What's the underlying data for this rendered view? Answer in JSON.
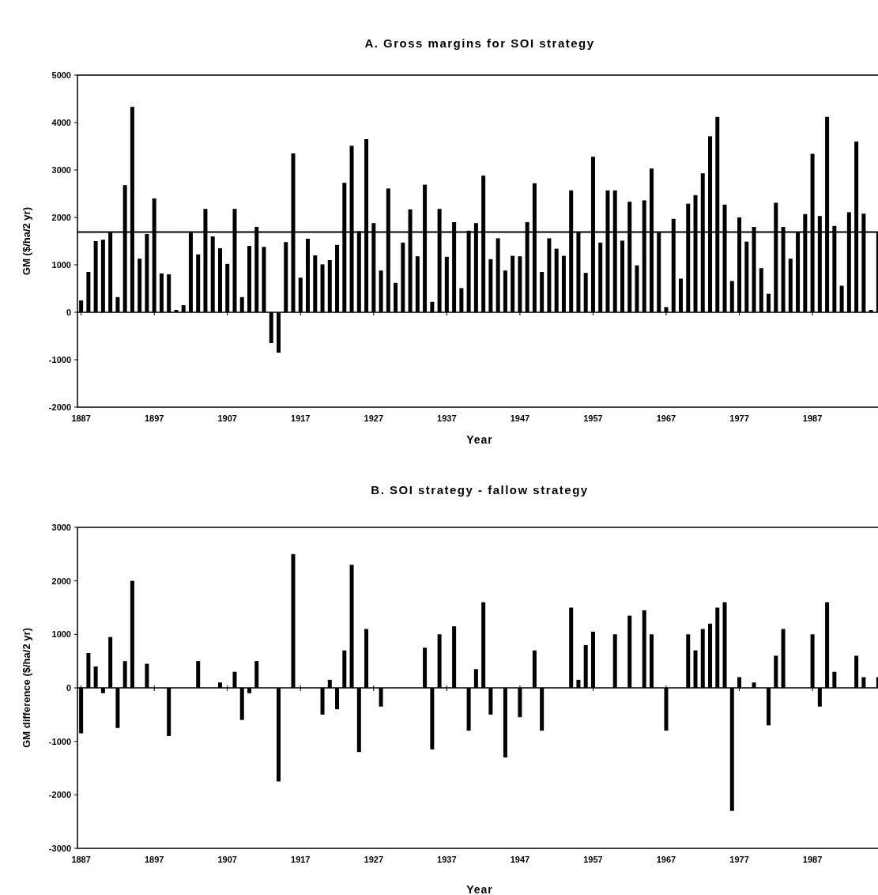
{
  "chart_data": [
    {
      "type": "bar",
      "title": "A. Gross margins for SOI strategy",
      "xlabel": "Year",
      "ylabel": "GM ($/ha/2 yr)",
      "x": [
        1887,
        1888,
        1889,
        1890,
        1891,
        1892,
        1893,
        1894,
        1895,
        1896,
        1897,
        1898,
        1899,
        1900,
        1901,
        1902,
        1903,
        1904,
        1905,
        1906,
        1907,
        1908,
        1909,
        1910,
        1911,
        1912,
        1913,
        1914,
        1915,
        1916,
        1917,
        1918,
        1919,
        1920,
        1921,
        1922,
        1923,
        1924,
        1925,
        1926,
        1927,
        1928,
        1929,
        1930,
        1931,
        1932,
        1933,
        1934,
        1935,
        1936,
        1937,
        1938,
        1939,
        1940,
        1941,
        1942,
        1943,
        1944,
        1945,
        1946,
        1947,
        1948,
        1949,
        1950,
        1951,
        1952,
        1953,
        1954,
        1955,
        1956,
        1957,
        1958,
        1959,
        1960,
        1961,
        1962,
        1963,
        1964,
        1965,
        1966,
        1967,
        1968,
        1969,
        1970,
        1971,
        1972,
        1973,
        1974,
        1975,
        1976,
        1977,
        1978,
        1979,
        1980,
        1981,
        1982,
        1983,
        1984,
        1985,
        1986,
        1987,
        1988,
        1989,
        1990,
        1991,
        1992,
        1993,
        1994,
        1995,
        1996
      ],
      "values": [
        250,
        850,
        1500,
        1530,
        1680,
        320,
        2680,
        4330,
        1130,
        1650,
        2400,
        820,
        800,
        50,
        150,
        1680,
        1220,
        2180,
        1600,
        1350,
        1020,
        2180,
        320,
        1400,
        1800,
        1380,
        -650,
        -850,
        1480,
        3350,
        730,
        1550,
        1200,
        1010,
        1100,
        1420,
        2730,
        3510,
        1710,
        3650,
        1880,
        880,
        2610,
        620,
        1470,
        2170,
        1180,
        2690,
        220,
        2180,
        1170,
        1900,
        510,
        1720,
        1880,
        2880,
        1120,
        1560,
        880,
        1190,
        1180,
        1900,
        2720,
        850,
        1560,
        1340,
        1190,
        2570,
        1690,
        830,
        3280,
        1470,
        2570,
        2570,
        1510,
        2330,
        990,
        2360,
        3030,
        1680,
        110,
        1970,
        710,
        2290,
        2470,
        2930,
        3710,
        4120,
        2270,
        660,
        2000,
        1490,
        1800,
        930,
        390,
        2310,
        1800,
        1130,
        1690,
        2070,
        3340,
        2030,
        4120,
        1820,
        560,
        2110,
        3600,
        2080,
        50,
        1680
      ],
      "color": "#000000",
      "xlim": [
        1886.5,
        1996.5
      ],
      "xticks": [
        1887,
        1897,
        1907,
        1917,
        1927,
        1937,
        1947,
        1957,
        1967,
        1977,
        1987
      ],
      "ylim": [
        -2000,
        5000
      ],
      "yticks": [
        -2000,
        -1000,
        0,
        1000,
        2000,
        3000,
        4000,
        5000
      ],
      "ref_lines": [
        {
          "axis": "y",
          "value": 1690,
          "color": "#000000"
        }
      ]
    },
    {
      "type": "bar",
      "title": "B. SOI strategy - fallow strategy",
      "xlabel": "Year",
      "ylabel": "GM difference ($/ha/2 yr)",
      "x": [
        1887,
        1888,
        1889,
        1890,
        1891,
        1892,
        1893,
        1894,
        1895,
        1896,
        1897,
        1898,
        1899,
        1900,
        1901,
        1902,
        1903,
        1904,
        1905,
        1906,
        1907,
        1908,
        1909,
        1910,
        1911,
        1912,
        1913,
        1914,
        1915,
        1916,
        1917,
        1918,
        1919,
        1920,
        1921,
        1922,
        1923,
        1924,
        1925,
        1926,
        1927,
        1928,
        1929,
        1930,
        1931,
        1932,
        1933,
        1934,
        1935,
        1936,
        1937,
        1938,
        1939,
        1940,
        1941,
        1942,
        1943,
        1944,
        1945,
        1946,
        1947,
        1948,
        1949,
        1950,
        1951,
        1952,
        1953,
        1954,
        1955,
        1956,
        1957,
        1958,
        1959,
        1960,
        1961,
        1962,
        1963,
        1964,
        1965,
        1966,
        1967,
        1968,
        1969,
        1970,
        1971,
        1972,
        1973,
        1974,
        1975,
        1976,
        1977,
        1978,
        1979,
        1980,
        1981,
        1982,
        1983,
        1984,
        1985,
        1986,
        1987,
        1988,
        1989,
        1990,
        1991,
        1992,
        1993,
        1994,
        1995,
        1996
      ],
      "values": [
        -850,
        650,
        400,
        -100,
        950,
        -750,
        500,
        2000,
        0,
        450,
        0,
        0,
        -900,
        0,
        0,
        0,
        500,
        0,
        0,
        100,
        0,
        300,
        -600,
        -100,
        500,
        0,
        0,
        -1750,
        0,
        2500,
        0,
        0,
        0,
        -500,
        150,
        -400,
        700,
        2300,
        -1200,
        1100,
        0,
        -350,
        0,
        0,
        0,
        0,
        0,
        750,
        -1150,
        1000,
        0,
        1150,
        0,
        -800,
        350,
        1600,
        -500,
        0,
        -1300,
        0,
        -550,
        0,
        700,
        -800,
        0,
        0,
        0,
        1500,
        150,
        800,
        1050,
        0,
        0,
        1000,
        0,
        1350,
        0,
        1450,
        1000,
        0,
        -800,
        0,
        0,
        1000,
        700,
        1100,
        1200,
        1500,
        1600,
        -2300,
        200,
        0,
        100,
        0,
        -700,
        600,
        1100,
        0,
        0,
        0,
        1000,
        -350,
        1600,
        300,
        0,
        0,
        600,
        200,
        0,
        200
      ],
      "color": "#000000",
      "xlim": [
        1886.5,
        1996.5
      ],
      "xticks": [
        1887,
        1897,
        1907,
        1917,
        1927,
        1937,
        1947,
        1957,
        1967,
        1977,
        1987
      ],
      "ylim": [
        -3000,
        3000
      ],
      "yticks": [
        -3000,
        -2000,
        -1000,
        0,
        1000,
        2000,
        3000
      ]
    }
  ]
}
